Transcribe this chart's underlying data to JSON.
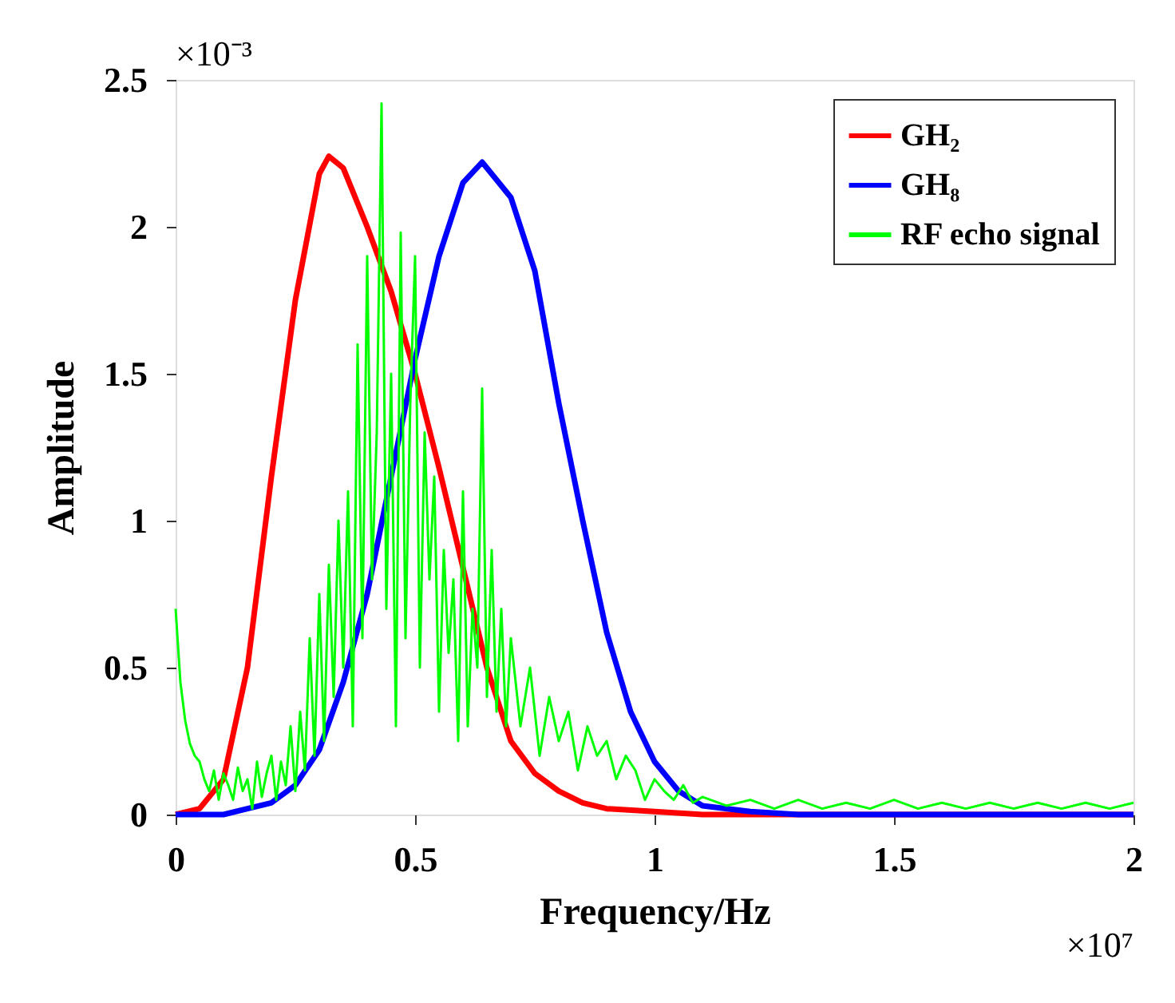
{
  "chart_data": {
    "type": "line",
    "xlabel": "Frequency/Hz",
    "ylabel": "Amplitude",
    "xlim": [
      0,
      2
    ],
    "ylim": [
      0,
      2.5
    ],
    "xticks": [
      0,
      0.5,
      1,
      1.5,
      2
    ],
    "yticks": [
      0,
      0.5,
      1,
      1.5,
      2,
      2.5
    ],
    "grid": false,
    "line_style": "solid",
    "legend": "top right",
    "annotations": [
      "×10⁻³",
      "×10⁷"
    ],
    "series": [
      {
        "name": "GH₂",
        "color": "#ff0000",
        "x": [
          0,
          0.05,
          0.1,
          0.15,
          0.2,
          0.25,
          0.3,
          0.32,
          0.35,
          0.4,
          0.45,
          0.5,
          0.55,
          0.6,
          0.65,
          0.7,
          0.75,
          0.8,
          0.85,
          0.9,
          1.0,
          1.1,
          2.0
        ],
        "values": [
          0,
          0.02,
          0.12,
          0.5,
          1.15,
          1.75,
          2.18,
          2.24,
          2.2,
          2.0,
          1.78,
          1.5,
          1.18,
          0.84,
          0.5,
          0.25,
          0.14,
          0.08,
          0.04,
          0.02,
          0.01,
          0,
          0
        ]
      },
      {
        "name": "GH₈",
        "color": "#0000ff",
        "x": [
          0,
          0.1,
          0.2,
          0.25,
          0.3,
          0.35,
          0.4,
          0.45,
          0.5,
          0.55,
          0.6,
          0.64,
          0.7,
          0.75,
          0.8,
          0.85,
          0.9,
          0.95,
          1.0,
          1.05,
          1.1,
          1.2,
          1.3,
          2.0
        ],
        "values": [
          0,
          0,
          0.04,
          0.1,
          0.22,
          0.45,
          0.75,
          1.15,
          1.55,
          1.9,
          2.15,
          2.22,
          2.1,
          1.85,
          1.4,
          1.0,
          0.62,
          0.35,
          0.18,
          0.08,
          0.03,
          0.01,
          0,
          0
        ]
      },
      {
        "name": "RF echo signal",
        "color": "#00ff00",
        "x": [
          0,
          0.01,
          0.02,
          0.03,
          0.04,
          0.05,
          0.06,
          0.07,
          0.08,
          0.09,
          0.1,
          0.11,
          0.12,
          0.13,
          0.14,
          0.15,
          0.16,
          0.17,
          0.18,
          0.19,
          0.2,
          0.21,
          0.22,
          0.23,
          0.24,
          0.25,
          0.26,
          0.27,
          0.28,
          0.29,
          0.3,
          0.31,
          0.32,
          0.33,
          0.34,
          0.35,
          0.36,
          0.37,
          0.38,
          0.39,
          0.4,
          0.41,
          0.42,
          0.43,
          0.44,
          0.45,
          0.46,
          0.47,
          0.48,
          0.49,
          0.5,
          0.51,
          0.52,
          0.53,
          0.54,
          0.55,
          0.56,
          0.57,
          0.58,
          0.59,
          0.6,
          0.61,
          0.62,
          0.63,
          0.64,
          0.65,
          0.66,
          0.67,
          0.68,
          0.69,
          0.7,
          0.72,
          0.74,
          0.76,
          0.78,
          0.8,
          0.82,
          0.84,
          0.86,
          0.88,
          0.9,
          0.92,
          0.94,
          0.96,
          0.98,
          1.0,
          1.02,
          1.04,
          1.06,
          1.08,
          1.1,
          1.15,
          1.2,
          1.25,
          1.3,
          1.35,
          1.4,
          1.45,
          1.5,
          1.55,
          1.6,
          1.65,
          1.7,
          1.75,
          1.8,
          1.85,
          1.9,
          1.95,
          2.0
        ],
        "values": [
          0.7,
          0.45,
          0.32,
          0.24,
          0.2,
          0.18,
          0.12,
          0.08,
          0.15,
          0.05,
          0.14,
          0.1,
          0.05,
          0.16,
          0.08,
          0.12,
          0.02,
          0.18,
          0.06,
          0.14,
          0.2,
          0.05,
          0.18,
          0.1,
          0.3,
          0.08,
          0.35,
          0.15,
          0.6,
          0.2,
          0.75,
          0.25,
          0.85,
          0.4,
          1.0,
          0.5,
          1.1,
          0.3,
          1.6,
          0.6,
          1.9,
          0.8,
          1.3,
          2.42,
          0.7,
          1.5,
          0.3,
          1.98,
          0.6,
          1.4,
          1.9,
          0.5,
          1.3,
          0.8,
          1.15,
          0.35,
          0.9,
          0.55,
          0.8,
          0.25,
          1.1,
          0.3,
          0.7,
          0.5,
          1.45,
          0.4,
          0.9,
          0.35,
          0.7,
          0.3,
          0.6,
          0.3,
          0.5,
          0.2,
          0.4,
          0.25,
          0.35,
          0.15,
          0.3,
          0.2,
          0.25,
          0.12,
          0.2,
          0.15,
          0.05,
          0.12,
          0.08,
          0.05,
          0.1,
          0.04,
          0.06,
          0.03,
          0.05,
          0.02,
          0.05,
          0.02,
          0.04,
          0.02,
          0.05,
          0.02,
          0.04,
          0.02,
          0.04,
          0.02,
          0.04,
          0.02,
          0.04,
          0.02,
          0.04
        ]
      }
    ]
  }
}
